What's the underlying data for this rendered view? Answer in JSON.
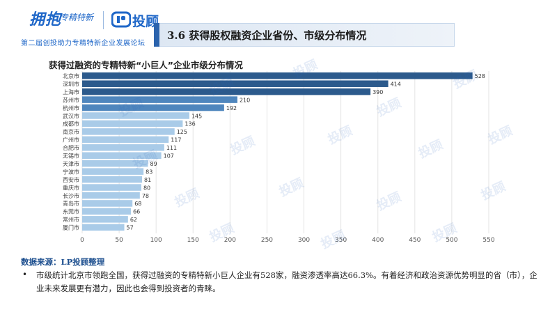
{
  "header": {
    "logo_main": "拥抱",
    "logo_script": "专精特新",
    "brand_name": "投顾",
    "subtitle": "第二届创投助力专精特新企业发展论坛",
    "section_title": "3.6 获得股权融资企业省份、市级分布情况"
  },
  "watermark_text": "投顾",
  "chart_data": {
    "type": "bar",
    "orientation": "horizontal",
    "title": "获得过融资的专精特新“小巨人”企业市级分布情况",
    "categories": [
      "北京市",
      "深圳市",
      "上海市",
      "苏州市",
      "杭州市",
      "武汉市",
      "成都市",
      "南京市",
      "广州市",
      "合肥市",
      "无锡市",
      "天津市",
      "宁波市",
      "西安市",
      "重庆市",
      "长沙市",
      "青岛市",
      "东莞市",
      "常州市",
      "厦门市"
    ],
    "values": [
      528,
      414,
      390,
      210,
      192,
      145,
      136,
      125,
      117,
      111,
      107,
      89,
      83,
      81,
      80,
      78,
      68,
      66,
      62,
      57
    ],
    "xlim": [
      0,
      550
    ],
    "xticks": [
      0,
      50,
      100,
      150,
      200,
      250,
      300,
      350,
      400,
      450,
      500,
      550
    ],
    "grid": true,
    "colors": {
      "dark": "#2c5a8c",
      "mid": "#4f86bd",
      "light": "#a9cbe8"
    }
  },
  "footer": {
    "source": "数据来源：LP投顾整理",
    "bullet": "•",
    "text": "市级统计北京市领跑全国，获得过融资的专精特新小巨人企业有528家，融资渗透率高达66.3%。有着经济和政治资源优势明显的省（市），企业未来发展更有潜力，因此也会得到投资者的青睐。"
  }
}
